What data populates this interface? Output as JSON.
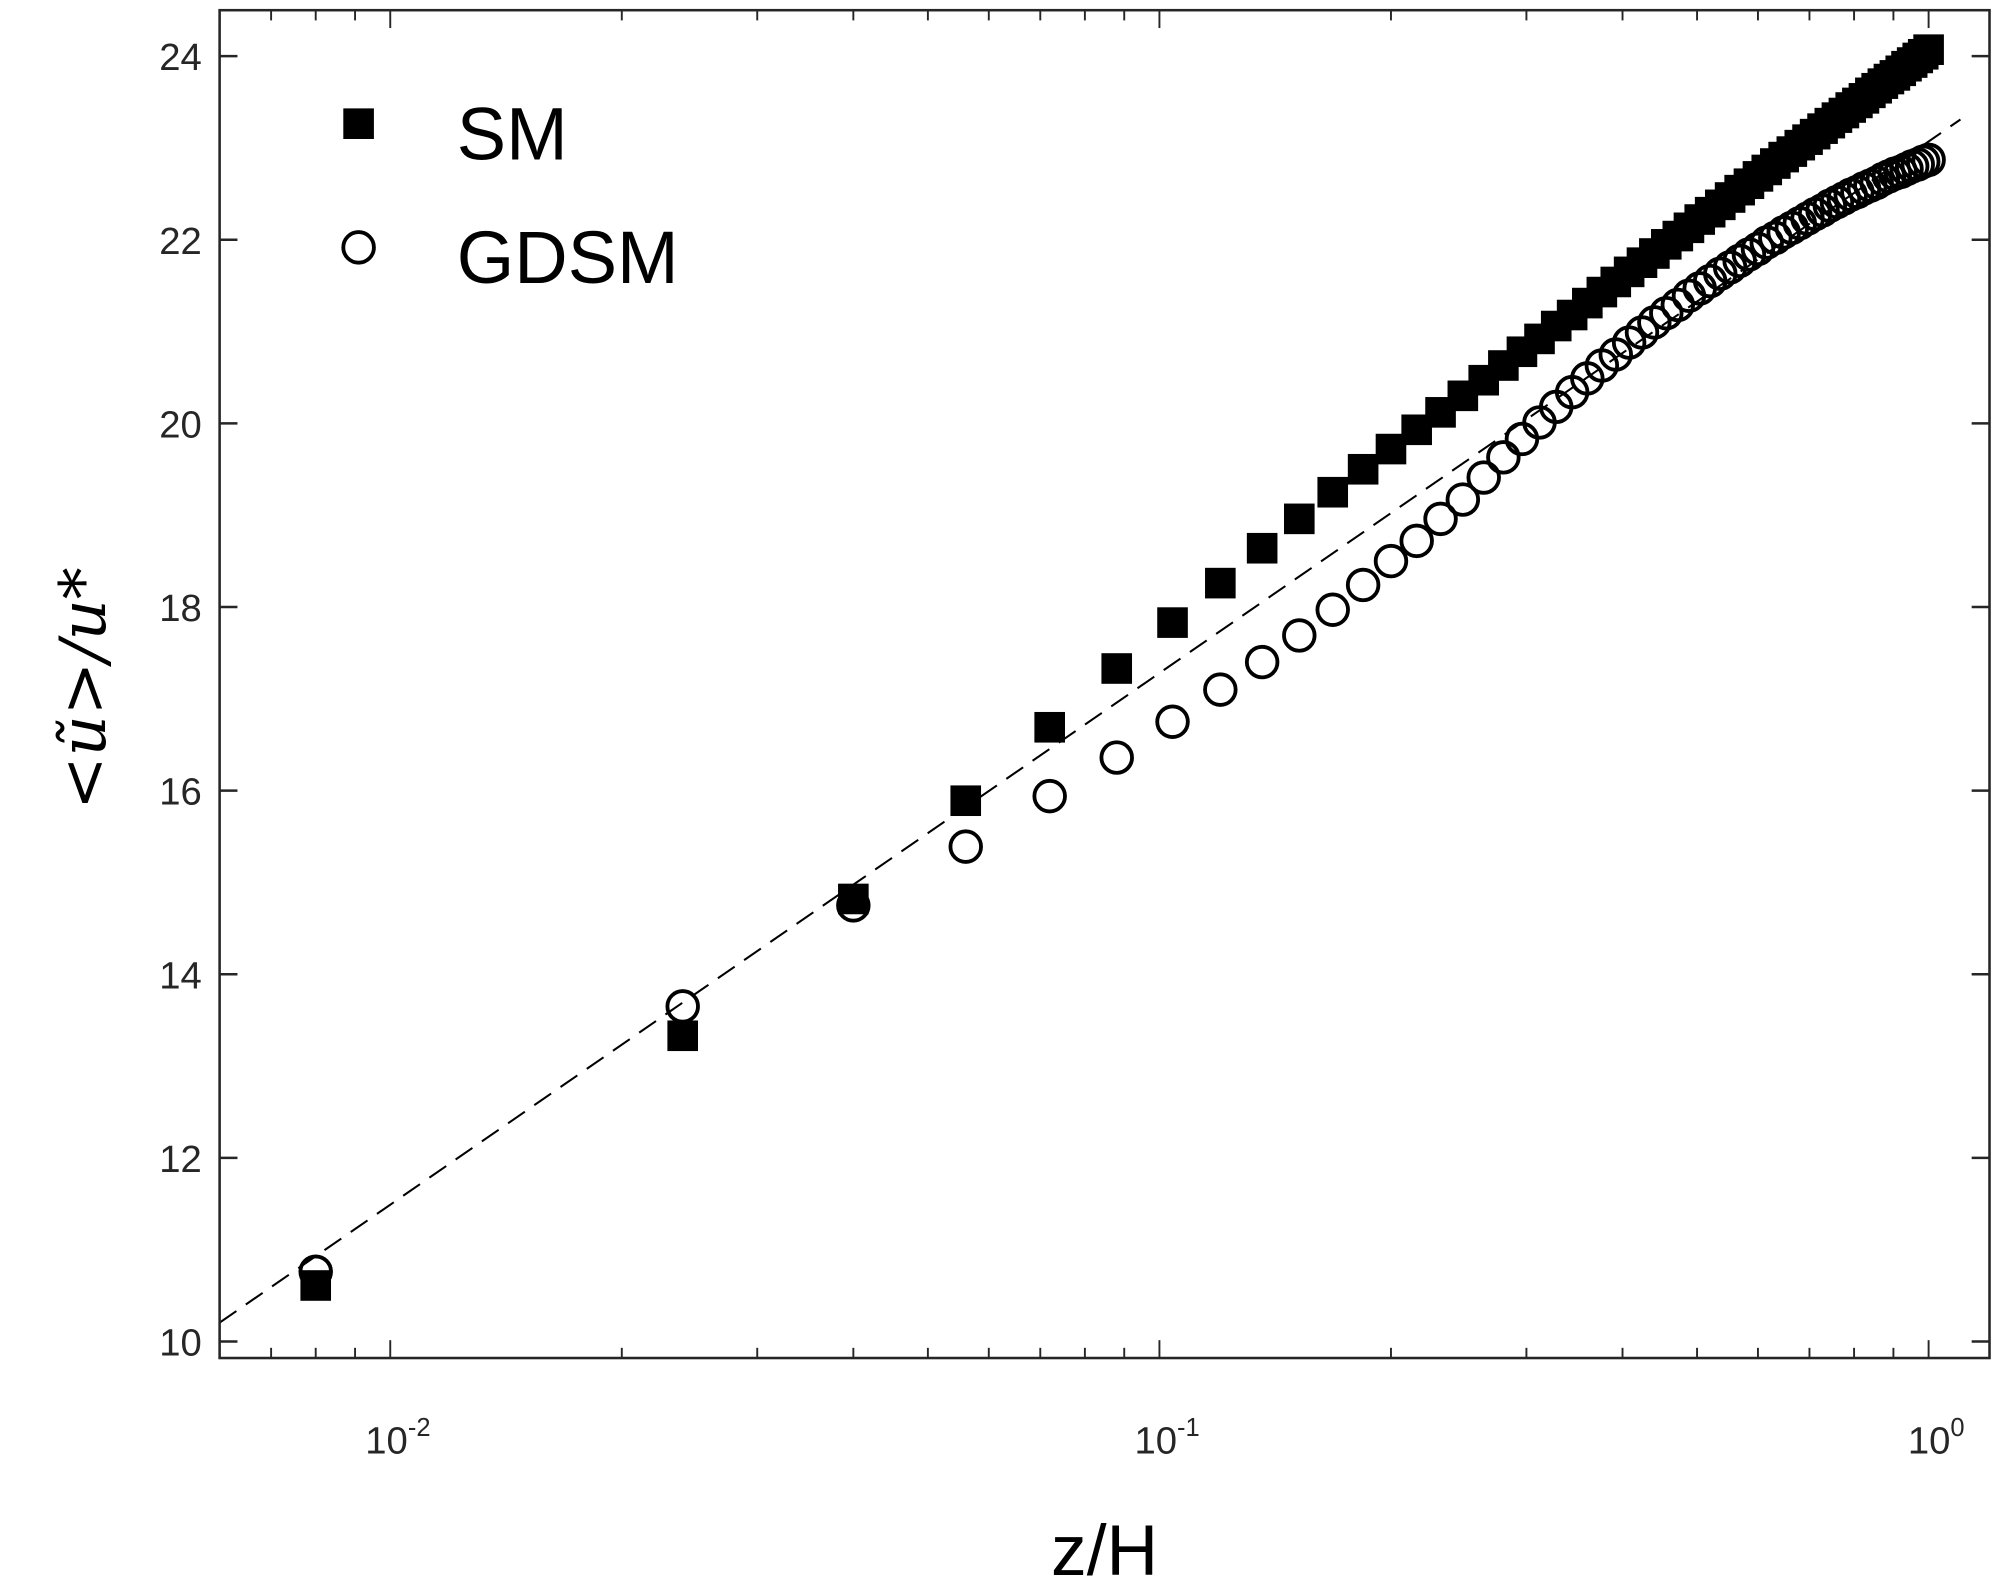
{
  "chart_data": {
    "type": "scatter",
    "title": "",
    "xlabel": "z/H",
    "ylabel": "<ũ>/u*",
    "xscale": "log",
    "xlim": [
      0.006,
      1.2
    ],
    "ylim": [
      9.82,
      24.5
    ],
    "xticks": [
      {
        "base": "10",
        "exp": "-2",
        "value": 0.01
      },
      {
        "base": "10",
        "exp": "-1",
        "value": 0.1
      },
      {
        "base": "10",
        "exp": "0",
        "value": 1
      }
    ],
    "yticks": [
      "10",
      "12",
      "14",
      "16",
      "18",
      "20",
      "22",
      "24"
    ],
    "grid": false,
    "legend_position": "top-left",
    "x": [
      0.008,
      0.024,
      0.04,
      0.056,
      0.072,
      0.088,
      0.104,
      0.12,
      0.136,
      0.152,
      0.168,
      0.184,
      0.2,
      0.216,
      0.232,
      0.248,
      0.264,
      0.28,
      0.296,
      0.312,
      0.328,
      0.344,
      0.36,
      0.376,
      0.392,
      0.408,
      0.424,
      0.44,
      0.456,
      0.472,
      0.488,
      0.504,
      0.52,
      0.536,
      0.552,
      0.568,
      0.584,
      0.6,
      0.616,
      0.632,
      0.648,
      0.664,
      0.68,
      0.696,
      0.712,
      0.728,
      0.744,
      0.76,
      0.776,
      0.792,
      0.808,
      0.824,
      0.84,
      0.856,
      0.872,
      0.888,
      0.904,
      0.92,
      0.936,
      0.952,
      0.968,
      0.984,
      1.0
    ],
    "series": [
      {
        "name": "SM",
        "marker": "filled-square",
        "color": "#000000",
        "values": [
          10.61,
          13.33,
          14.82,
          15.89,
          16.69,
          17.33,
          17.83,
          18.26,
          18.64,
          18.96,
          19.25,
          19.5,
          19.72,
          19.93,
          20.12,
          20.3,
          20.47,
          20.63,
          20.78,
          20.92,
          21.06,
          21.18,
          21.31,
          21.43,
          21.54,
          21.65,
          21.75,
          21.85,
          21.95,
          22.04,
          22.13,
          22.22,
          22.3,
          22.38,
          22.46,
          22.54,
          22.61,
          22.69,
          22.76,
          22.83,
          22.9,
          22.96,
          23.03,
          23.09,
          23.15,
          23.21,
          23.27,
          23.33,
          23.38,
          23.44,
          23.49,
          23.54,
          23.6,
          23.65,
          23.7,
          23.75,
          23.79,
          23.84,
          23.89,
          23.93,
          23.98,
          24.02,
          24.07
        ]
      },
      {
        "name": "GDSM",
        "marker": "open-circle",
        "color": "#000000",
        "values": [
          10.76,
          13.65,
          14.75,
          15.39,
          15.94,
          16.36,
          16.75,
          17.1,
          17.4,
          17.69,
          17.97,
          18.24,
          18.5,
          18.72,
          18.96,
          19.17,
          19.41,
          19.63,
          19.83,
          20.01,
          20.18,
          20.34,
          20.49,
          20.63,
          20.75,
          20.88,
          20.99,
          21.1,
          21.2,
          21.29,
          21.39,
          21.47,
          21.55,
          21.63,
          21.7,
          21.77,
          21.84,
          21.9,
          21.97,
          22.02,
          22.08,
          22.13,
          22.18,
          22.23,
          22.28,
          22.32,
          22.37,
          22.41,
          22.45,
          22.49,
          22.52,
          22.56,
          22.59,
          22.62,
          22.66,
          22.69,
          22.72,
          22.74,
          22.77,
          22.8,
          22.82,
          22.85,
          22.87
        ]
      }
    ],
    "reference_line": {
      "style": "dashed",
      "intercept_at_1": 23.07,
      "slope_per_decade": 5.79,
      "x_range": [
        0.006,
        1.1
      ]
    }
  }
}
